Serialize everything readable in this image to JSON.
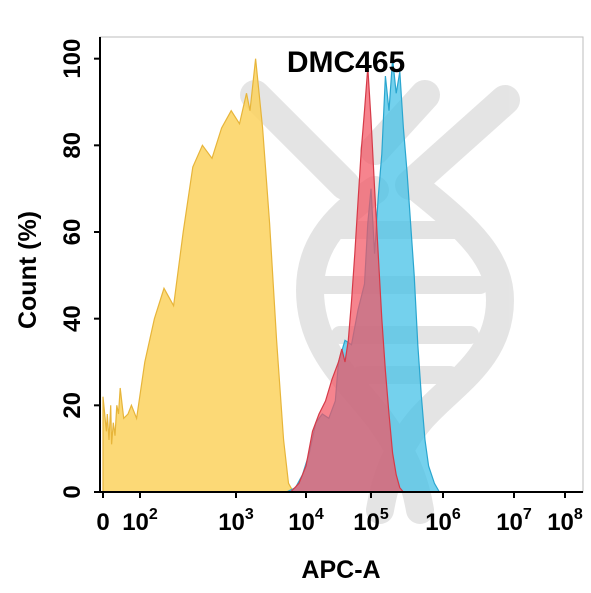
{
  "chart_data": {
    "type": "area",
    "title": "DMC465",
    "xlabel": "APC-A",
    "ylabel": "Count  (%)",
    "x_scale": "biexponential",
    "x_tick_labels": [
      {
        "value": 0,
        "base": "0",
        "exp": ""
      },
      {
        "value": 100,
        "base": "10",
        "exp": "2"
      },
      {
        "value": 1000,
        "base": "10",
        "exp": "3"
      },
      {
        "value": 10000,
        "base": "10",
        "exp": "4"
      },
      {
        "value": 100000,
        "base": "10",
        "exp": "5"
      },
      {
        "value": 1000000,
        "base": "10",
        "exp": "6"
      },
      {
        "value": 10000000,
        "base": "10",
        "exp": "7"
      },
      {
        "value": 100000000,
        "base": "10",
        "exp": "8"
      }
    ],
    "y_ticks": [
      0,
      20,
      40,
      60,
      80,
      100
    ],
    "ylim": [
      0,
      105
    ],
    "grid": false,
    "legend": "none",
    "watermark_icon": "dna-logo-icon",
    "series": [
      {
        "color": "#fcd25e",
        "line_color": "#e7b53a",
        "opacity": 0.85,
        "points": [
          [
            -0.15,
            22
          ],
          [
            0.05,
            14
          ],
          [
            0.1,
            18
          ],
          [
            0.2,
            12
          ],
          [
            0.3,
            20
          ],
          [
            0.35,
            11
          ],
          [
            0.45,
            16
          ],
          [
            0.55,
            13
          ],
          [
            0.65,
            20
          ],
          [
            0.75,
            18
          ],
          [
            0.85,
            24
          ],
          [
            1.05,
            17
          ],
          [
            1.3,
            18
          ],
          [
            1.5,
            20
          ],
          [
            1.8,
            17
          ],
          [
            2.05,
            30
          ],
          [
            2.15,
            40
          ],
          [
            2.25,
            47
          ],
          [
            2.35,
            43
          ],
          [
            2.45,
            60
          ],
          [
            2.55,
            75
          ],
          [
            2.65,
            80
          ],
          [
            2.75,
            77
          ],
          [
            2.85,
            84
          ],
          [
            2.95,
            88
          ],
          [
            3.05,
            85
          ],
          [
            3.15,
            92
          ],
          [
            3.2,
            88
          ],
          [
            3.28,
            100
          ],
          [
            3.38,
            84
          ],
          [
            3.48,
            62
          ],
          [
            3.58,
            35
          ],
          [
            3.68,
            12
          ],
          [
            3.75,
            2
          ],
          [
            3.82,
            0
          ]
        ]
      },
      {
        "color": "#45c2e7",
        "line_color": "#2aa6cf",
        "opacity": 0.75,
        "points": [
          [
            3.72,
            0
          ],
          [
            3.85,
            1
          ],
          [
            3.95,
            4
          ],
          [
            4.05,
            9
          ],
          [
            4.15,
            16
          ],
          [
            4.25,
            18
          ],
          [
            4.35,
            17
          ],
          [
            4.45,
            21
          ],
          [
            4.5,
            30
          ],
          [
            4.6,
            35
          ],
          [
            4.7,
            34
          ],
          [
            4.8,
            42
          ],
          [
            4.9,
            48
          ],
          [
            4.95,
            62
          ],
          [
            5.0,
            70
          ],
          [
            5.05,
            55
          ],
          [
            5.1,
            68
          ],
          [
            5.15,
            78
          ],
          [
            5.2,
            96
          ],
          [
            5.25,
            88
          ],
          [
            5.3,
            100
          ],
          [
            5.35,
            92
          ],
          [
            5.4,
            97
          ],
          [
            5.45,
            84
          ],
          [
            5.5,
            74
          ],
          [
            5.55,
            62
          ],
          [
            5.6,
            50
          ],
          [
            5.65,
            34
          ],
          [
            5.7,
            22
          ],
          [
            5.75,
            12
          ],
          [
            5.8,
            6
          ],
          [
            5.88,
            2
          ],
          [
            5.95,
            0
          ]
        ]
      },
      {
        "color": "#f25462",
        "line_color": "#d63a48",
        "opacity": 0.72,
        "points": [
          [
            3.78,
            0
          ],
          [
            3.9,
            2
          ],
          [
            4.0,
            6
          ],
          [
            4.1,
            14
          ],
          [
            4.2,
            18
          ],
          [
            4.3,
            21
          ],
          [
            4.4,
            26
          ],
          [
            4.5,
            30
          ],
          [
            4.55,
            33
          ],
          [
            4.6,
            30
          ],
          [
            4.65,
            35
          ],
          [
            4.7,
            44
          ],
          [
            4.75,
            55
          ],
          [
            4.8,
            67
          ],
          [
            4.85,
            79
          ],
          [
            4.9,
            88
          ],
          [
            4.95,
            98
          ],
          [
            5.0,
            86
          ],
          [
            5.05,
            70
          ],
          [
            5.1,
            55
          ],
          [
            5.15,
            40
          ],
          [
            5.2,
            28
          ],
          [
            5.25,
            18
          ],
          [
            5.3,
            9
          ],
          [
            5.35,
            4
          ],
          [
            5.4,
            1
          ],
          [
            5.45,
            0
          ]
        ]
      }
    ]
  }
}
